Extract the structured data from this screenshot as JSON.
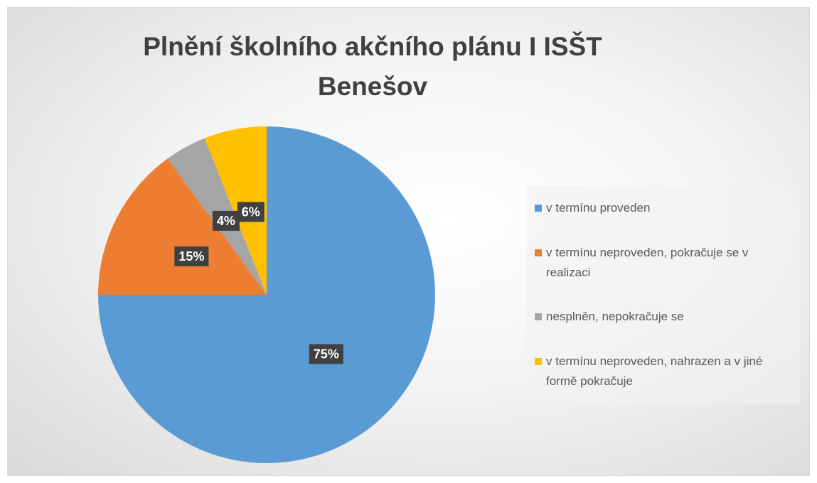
{
  "chart_data": {
    "type": "pie",
    "title": "Plnění školního akčního plánu I ISŠT Benešov",
    "categories": [
      "v termínu proveden",
      "v termínu neproveden, pokračuje se v realizaci",
      "nesplněn, nepokračuje se",
      "v termínu neproveden, nahrazen a v jiné formě pokračuje"
    ],
    "values": [
      75,
      15,
      4,
      6
    ],
    "value_labels": [
      "75%",
      "15%",
      "4%",
      "6%"
    ],
    "colors": [
      "#5b9bd5",
      "#ed7d31",
      "#a5a5a5",
      "#ffc000"
    ],
    "legend": "right"
  }
}
